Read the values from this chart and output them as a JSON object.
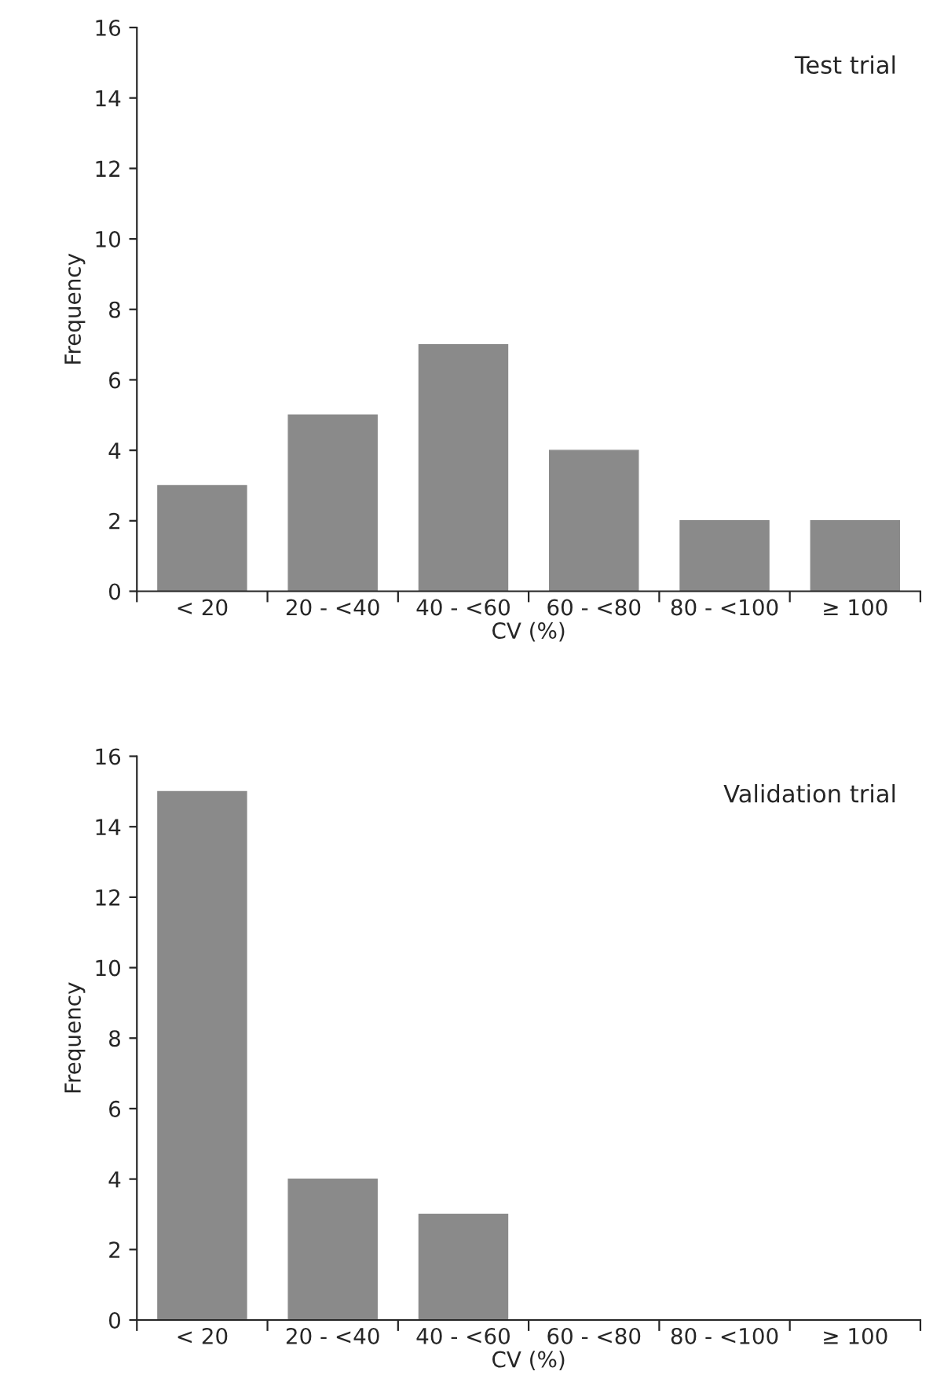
{
  "chart_data": [
    {
      "type": "bar",
      "title": "Test trial",
      "xlabel": "CV (%)",
      "ylabel": "Frequency",
      "categories": [
        "< 20",
        "20 - <40",
        "40 - <60",
        "60 - <80",
        "80 - <100",
        "≥ 100"
      ],
      "values": [
        3,
        5,
        7,
        4,
        2,
        2
      ],
      "color": "#8a8a8a",
      "ylim": [
        0,
        16
      ],
      "yticks": [
        0,
        2,
        4,
        6,
        8,
        10,
        12,
        14,
        16
      ],
      "grid": false
    },
    {
      "type": "bar",
      "title": "Validation trial",
      "xlabel": "CV (%)",
      "ylabel": "Frequency",
      "categories": [
        "< 20",
        "20 - <40",
        "40 - <60",
        "60 - <80",
        "80 - <100",
        "≥ 100"
      ],
      "values": [
        15,
        4,
        3,
        0,
        0,
        0
      ],
      "color": "#8a8a8a",
      "ylim": [
        0,
        16
      ],
      "yticks": [
        0,
        2,
        4,
        6,
        8,
        10,
        12,
        14,
        16
      ],
      "grid": false
    }
  ]
}
